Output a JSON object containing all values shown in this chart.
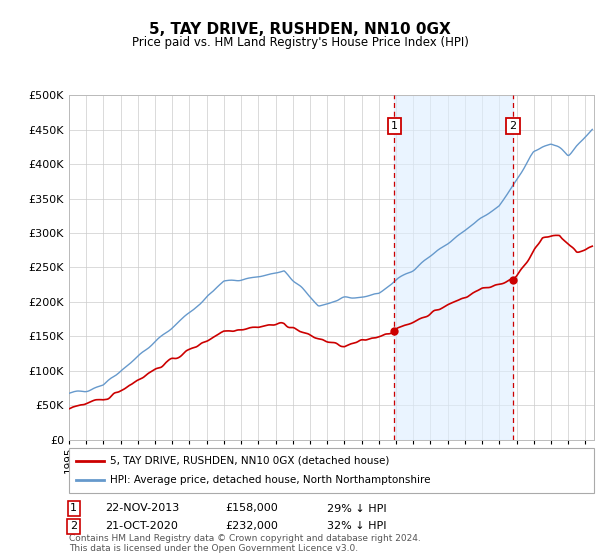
{
  "title": "5, TAY DRIVE, RUSHDEN, NN10 0GX",
  "subtitle": "Price paid vs. HM Land Registry's House Price Index (HPI)",
  "legend_line1": "5, TAY DRIVE, RUSHDEN, NN10 0GX (detached house)",
  "legend_line2": "HPI: Average price, detached house, North Northamptonshire",
  "annotation1_date": "22-NOV-2013",
  "annotation1_price": "£158,000",
  "annotation1_hpi": "29% ↓ HPI",
  "annotation2_date": "21-OCT-2020",
  "annotation2_price": "£232,000",
  "annotation2_hpi": "32% ↓ HPI",
  "footnote": "Contains HM Land Registry data © Crown copyright and database right 2024.\nThis data is licensed under the Open Government Licence v3.0.",
  "sale1_year": 2013.9,
  "sale1_price": 158000,
  "sale2_year": 2020.8,
  "sale2_price": 232000,
  "red_line_color": "#cc0000",
  "blue_line_color": "#6699cc",
  "blue_fill_color": "#ddeeff",
  "dashed_line_color": "#cc0000",
  "grid_color": "#cccccc",
  "background_color": "#ffffff",
  "ylim": [
    0,
    500000
  ],
  "yticks": [
    0,
    50000,
    100000,
    150000,
    200000,
    250000,
    300000,
    350000,
    400000,
    450000,
    500000
  ],
  "xmin": 1995,
  "xmax": 2025.5
}
